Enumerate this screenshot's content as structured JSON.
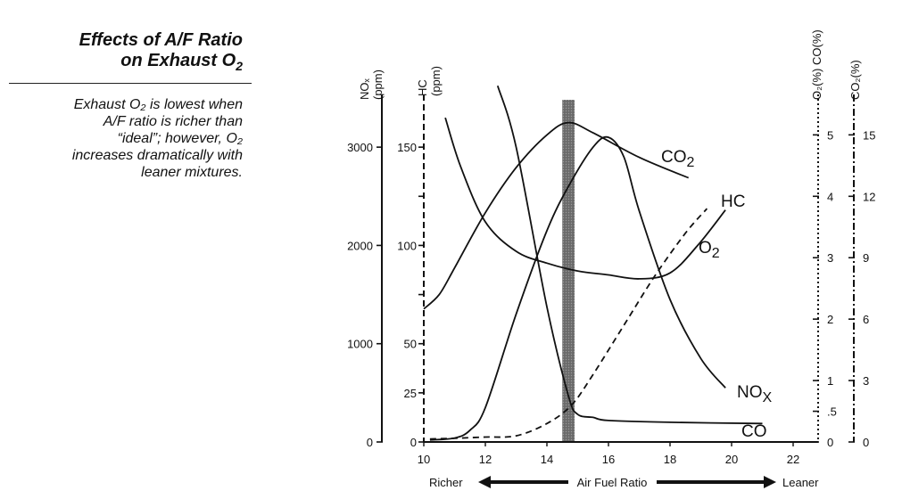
{
  "side_panel": {
    "title_line1": "Effects of A/F Ratio",
    "title_line2": "on Exhaust O",
    "title_sub": "2",
    "caption_lines": [
      "Exhaust O₂ is lowest when",
      "A/F ratio is richer than",
      "“ideal”; however, O₂",
      "increases dramatically with",
      "leaner mixtures."
    ]
  },
  "chart_data": {
    "type": "line",
    "x": {
      "label": "Air Fuel Ratio",
      "range": [
        10,
        23
      ],
      "ticks": [
        10,
        12,
        14,
        16,
        18,
        20,
        22
      ],
      "left_label": "Richer",
      "right_label": "Leaner"
    },
    "ideal_band": [
      14.5,
      14.9
    ],
    "axes": {
      "nox": {
        "title": "NOₓ (ppm)",
        "range": [
          0,
          3500
        ],
        "ticks": [
          0,
          1000,
          2000,
          3000
        ],
        "tick_labels": [
          "0",
          "1000",
          "2000",
          "3000"
        ]
      },
      "hc": {
        "title": "HC (ppm)",
        "range": [
          0,
          175
        ],
        "ticks": [
          0,
          25,
          50,
          100,
          150
        ],
        "tick_labels": [
          "0",
          "25",
          "50",
          "100",
          "150"
        ]
      },
      "o2_co": {
        "title": "O₂(%) CO(%)",
        "range": [
          0,
          5.6
        ],
        "ticks": [
          0,
          0.5,
          1,
          2,
          3,
          4,
          5
        ],
        "tick_labels": [
          "0",
          ".5",
          "1",
          "2",
          "3",
          "4",
          "5"
        ]
      },
      "co2": {
        "title": "CO₂(%)",
        "range": [
          0,
          16.8
        ],
        "ticks": [
          0,
          3,
          6,
          9,
          12,
          15
        ],
        "tick_labels": [
          "0",
          "3",
          "6",
          "9",
          "12",
          "15"
        ]
      }
    },
    "series": [
      {
        "name": "CO₂",
        "axis": "co2",
        "x": [
          10,
          10.5,
          11,
          12,
          13,
          14,
          14.7,
          15.5,
          17,
          18.6
        ],
        "y": [
          6.5,
          7.2,
          8.5,
          11.2,
          13.4,
          15,
          15.6,
          15.1,
          13.9,
          12.9
        ]
      },
      {
        "name": "HC",
        "axis": "hc",
        "x": [
          10.7,
          11.2,
          12,
          13,
          14,
          15,
          16,
          17,
          18,
          18.9,
          19.8
        ],
        "y": [
          165,
          140,
          112,
          97,
          91,
          87,
          85,
          83,
          86,
          100,
          118
        ]
      },
      {
        "name": "O₂",
        "axis": "o2_co",
        "x": [
          10.2,
          11,
          12,
          13,
          14,
          14.8,
          15.5,
          16.5,
          17.5,
          18.5,
          19.2
        ],
        "y": [
          0.05,
          0.06,
          0.08,
          0.1,
          0.3,
          0.6,
          1.1,
          1.9,
          2.7,
          3.4,
          3.8
        ]
      },
      {
        "name": "NOₓ",
        "axis": "nox",
        "x": [
          10.2,
          11,
          11.5,
          12,
          13,
          14,
          14.7,
          15.5,
          16,
          16.5,
          17,
          18,
          19,
          19.8
        ],
        "y": [
          20,
          40,
          120,
          350,
          1300,
          2150,
          2600,
          3000,
          3100,
          2900,
          2350,
          1450,
          850,
          550
        ]
      },
      {
        "name": "CO",
        "axis": "o2_co",
        "x": [
          12.4,
          13,
          14,
          14.7,
          15,
          15.5,
          16,
          18,
          21
        ],
        "y": [
          5.8,
          4.8,
          2.2,
          0.75,
          0.45,
          0.4,
          0.35,
          0.32,
          0.3
        ]
      }
    ]
  }
}
